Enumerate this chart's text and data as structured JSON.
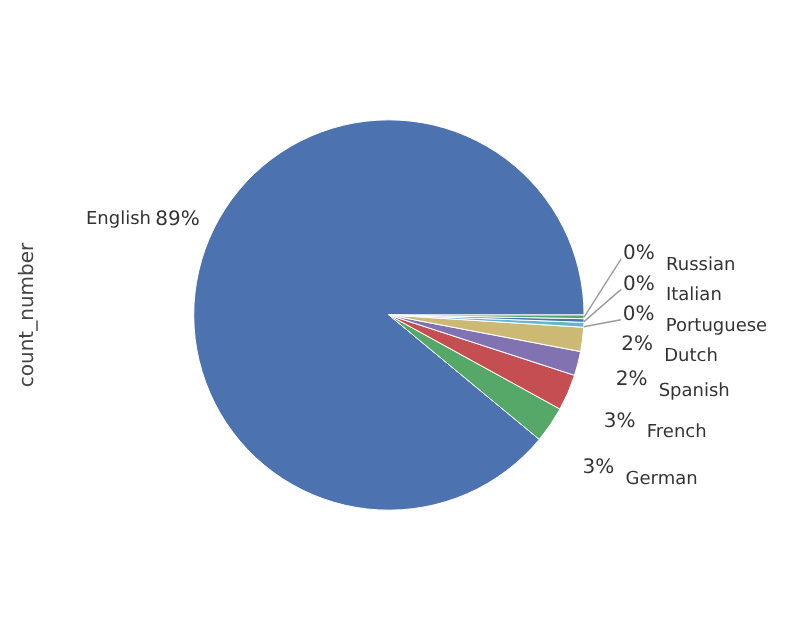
{
  "chart_data": {
    "type": "pie",
    "ylabel": "count_number",
    "categories": [
      "English",
      "German",
      "French",
      "Spanish",
      "Dutch",
      "Portuguese",
      "Italian",
      "Russian"
    ],
    "values": [
      89,
      3,
      3,
      2,
      2,
      0.4,
      0.3,
      0.3
    ],
    "value_labels": [
      "89%",
      "3%",
      "3%",
      "2%",
      "2%",
      "0%",
      "0%",
      "0%"
    ],
    "colors": [
      "#4c72b0",
      "#55a868",
      "#c44e52",
      "#8172b2",
      "#ccb974",
      "#64b5cd",
      "#4c72b0",
      "#55a868"
    ]
  }
}
